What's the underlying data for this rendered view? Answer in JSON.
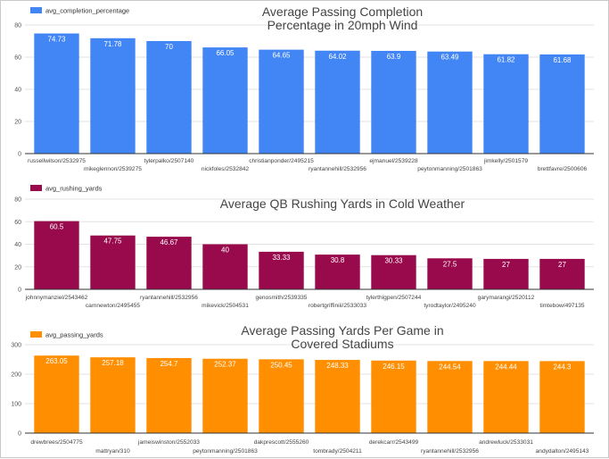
{
  "chart_data": [
    {
      "type": "bar",
      "title": [
        "Average Passing Completion",
        "Percentage in 20mph Wind"
      ],
      "legend": "avg_completion_percentage",
      "color": "#4285f4",
      "ylim": [
        0,
        80
      ],
      "yticks": [
        0,
        20,
        40,
        60,
        80
      ],
      "categories": [
        "russellwilson/2532975",
        "mikeglennon/2539275",
        "tylerpalko/2507140",
        "nickfoles/2532842",
        "christianponder/2495215",
        "ryantannehill/2532956",
        "ejmanuel/2539228",
        "peytonmanning/2501863",
        "jimkelly/2501579",
        "brettfavre/2500606"
      ],
      "values": [
        74.73,
        71.78,
        70,
        66.05,
        64.65,
        64.02,
        63.9,
        63.49,
        61.82,
        61.68
      ],
      "value_labels": [
        "74.73",
        "71.78",
        "70",
        "66.05",
        "64.65",
        "64.02",
        "63.9",
        "63.49",
        "61.82",
        "61.68"
      ]
    },
    {
      "type": "bar",
      "title": [
        "Average QB Rushing Yards in Cold Weather"
      ],
      "legend": "avg_rushing_yards",
      "color": "#990a4d",
      "ylim": [
        0,
        80
      ],
      "yticks": [
        0,
        20,
        40,
        60,
        80
      ],
      "categories": [
        "johnnymanziel/2543462",
        "camnewton/2495455",
        "ryantannehill/2532956",
        "mikevick/2504531",
        "genosmith/2539335",
        "robertgriffiniii/2533033",
        "tylerthigpen/2507244",
        "tyrodtaylor/2495240",
        "garymarangi/2520112",
        "timtebow/497135"
      ],
      "values": [
        60.5,
        47.75,
        46.67,
        40,
        33.33,
        30.8,
        30.33,
        27.5,
        27,
        27
      ],
      "value_labels": [
        "60.5",
        "47.75",
        "46.67",
        "40",
        "33.33",
        "30.8",
        "30.33",
        "27.5",
        "27",
        "27"
      ]
    },
    {
      "type": "bar",
      "title": [
        "Average Passing Yards Per Game in",
        "Covered Stadiums"
      ],
      "legend": "avg_passing_yards",
      "color": "#ff8f00",
      "ylim": [
        0,
        300
      ],
      "yticks": [
        0,
        100,
        200,
        300
      ],
      "categories": [
        "drewbrees/2504775",
        "mattryan/310",
        "jameiswinston/2552033",
        "peytonmanning/2501863",
        "dakprescott/2555260",
        "tombrady/2504211",
        "derekcarr/2543499",
        "ryantannehill/2532956",
        "andrewluck/2533031",
        "andydalton/2495143"
      ],
      "values": [
        263.05,
        257.18,
        254.7,
        252.37,
        250.45,
        248.33,
        246.15,
        244.54,
        244.44,
        244.3
      ],
      "value_labels": [
        "263.05",
        "257.18",
        "254.7",
        "252.37",
        "250.45",
        "248.33",
        "246.15",
        "244.54",
        "244.44",
        "244.3"
      ]
    }
  ]
}
